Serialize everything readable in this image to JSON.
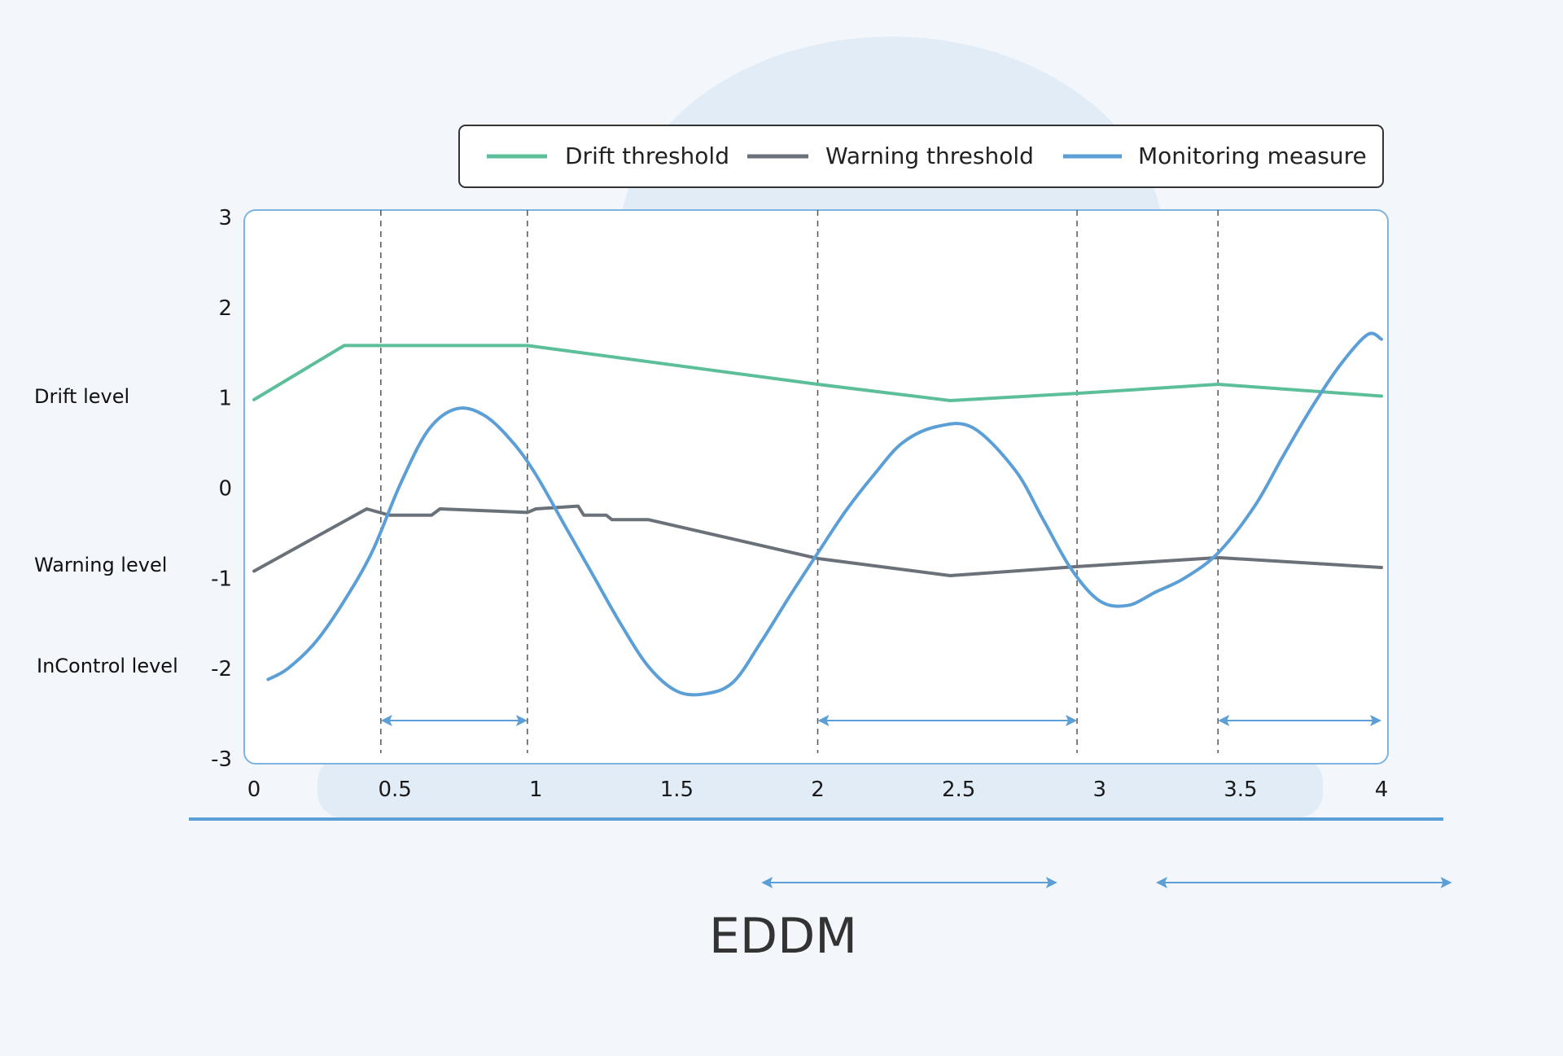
{
  "title": "EDDM",
  "colors": {
    "drift": "#5cbf9a",
    "warning": "#6b7178",
    "monitoring": "#5b9fd6",
    "background": "#f3f7fc",
    "decor": "#e2ecf7",
    "frame": "#7fb3df"
  },
  "legend": {
    "items": [
      {
        "label": "Drift threshold",
        "color": "#5cbf9a"
      },
      {
        "label": "Warning threshold",
        "color": "#6b7178"
      },
      {
        "label": "Monitoring measure",
        "color": "#5b9fd6"
      }
    ]
  },
  "side_labels": {
    "drift": "Drift level",
    "warning": "Warning level",
    "incontrol": "InControl level"
  },
  "chart_data": {
    "type": "line",
    "xlim": [
      0,
      4
    ],
    "ylim": [
      -3,
      3
    ],
    "x_ticks": [
      "0",
      "0.5",
      "1",
      "1.5",
      "2",
      "2.5",
      "3",
      "3.5",
      "4"
    ],
    "y_ticks": [
      "3",
      "2",
      "1",
      "0",
      "-1",
      "-2",
      "-3"
    ],
    "grid": false,
    "legend_position": "top",
    "vlines": [
      0.45,
      0.97,
      2.0,
      2.92,
      3.42
    ],
    "interval_arrows": [
      [
        0.45,
        0.97
      ],
      [
        2.0,
        2.92
      ],
      [
        3.42,
        4.0
      ]
    ],
    "bottom_arrows": [
      [
        1.8,
        2.85
      ],
      [
        3.2,
        4.25
      ]
    ],
    "series": [
      {
        "name": "Drift threshold",
        "color": "#5cbf9a",
        "x": [
          0,
          0.32,
          0.97,
          2.0,
          2.47,
          2.92,
          3.42,
          4.0
        ],
        "y": [
          0.98,
          1.58,
          1.58,
          1.15,
          0.97,
          1.05,
          1.15,
          1.02
        ]
      },
      {
        "name": "Warning threshold",
        "color": "#6b7178",
        "x": [
          0,
          0.4,
          0.48,
          0.63,
          0.66,
          0.97,
          1.0,
          1.15,
          1.17,
          1.25,
          1.27,
          1.4,
          2.0,
          2.47,
          2.92,
          3.42,
          4.0
        ],
        "y": [
          -0.92,
          -0.23,
          -0.3,
          -0.3,
          -0.23,
          -0.27,
          -0.23,
          -0.2,
          -0.3,
          -0.3,
          -0.35,
          -0.35,
          -0.78,
          -0.97,
          -0.87,
          -0.77,
          -0.88
        ]
      },
      {
        "name": "Monitoring measure",
        "color": "#5b9fd6",
        "x": [
          0.05,
          0.12,
          0.22,
          0.32,
          0.42,
          0.52,
          0.62,
          0.72,
          0.82,
          0.92,
          1.0,
          1.1,
          1.2,
          1.3,
          1.4,
          1.5,
          1.6,
          1.7,
          1.8,
          1.9,
          2.0,
          2.1,
          2.2,
          2.3,
          2.42,
          2.55,
          2.7,
          2.8,
          2.9,
          3.0,
          3.1,
          3.2,
          3.3,
          3.42,
          3.55,
          3.65,
          3.75,
          3.85,
          3.95,
          4.0
        ],
        "y": [
          -2.12,
          -2.0,
          -1.7,
          -1.25,
          -0.7,
          0.05,
          0.65,
          0.88,
          0.8,
          0.5,
          0.15,
          -0.4,
          -0.95,
          -1.5,
          -1.98,
          -2.25,
          -2.28,
          -2.15,
          -1.7,
          -1.2,
          -0.72,
          -0.25,
          0.15,
          0.5,
          0.68,
          0.67,
          0.2,
          -0.35,
          -0.9,
          -1.25,
          -1.3,
          -1.15,
          -1.0,
          -0.72,
          -0.2,
          0.35,
          0.88,
          1.35,
          1.7,
          1.65
        ]
      }
    ]
  }
}
